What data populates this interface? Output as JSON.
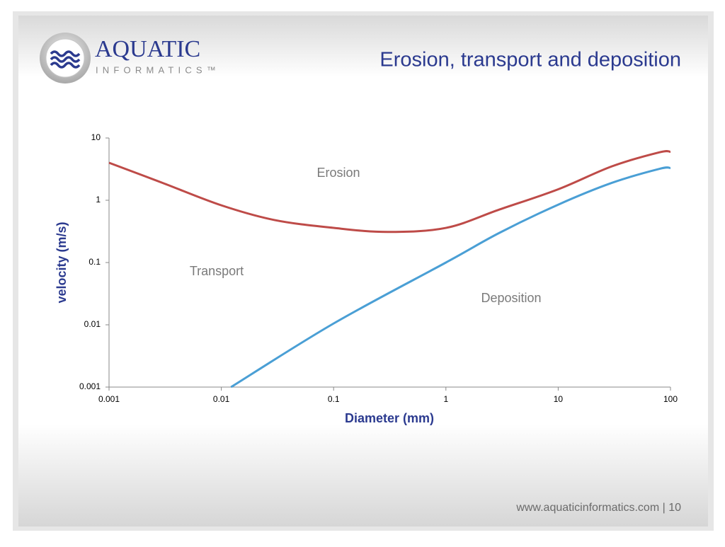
{
  "header": {
    "logo_name": "AQUATIC",
    "logo_sub": "INFORMATICS™",
    "title": "Erosion, transport and deposition"
  },
  "chart_data": {
    "type": "line",
    "x_label": "Diameter (mm)",
    "y_label": "velocity (m/s)",
    "xlog": true,
    "ylog": true,
    "xlim": [
      0.001,
      100
    ],
    "ylim": [
      0.001,
      10
    ],
    "xticks": [
      0.001,
      0.01,
      0.1,
      1,
      10,
      100
    ],
    "yticks": [
      0.001,
      0.01,
      0.1,
      1,
      10
    ],
    "annotations": [
      "Erosion",
      "Transport",
      "Deposition"
    ],
    "series": [
      {
        "color": "#be4b48",
        "x": [
          0.001,
          0.003,
          0.01,
          0.03,
          0.1,
          0.3,
          1,
          3,
          10,
          30,
          80,
          100
        ],
        "values": [
          4,
          1.9,
          0.83,
          0.48,
          0.36,
          0.31,
          0.36,
          0.71,
          1.5,
          3.5,
          5.9,
          6.0
        ]
      },
      {
        "color": "#4a9fd5",
        "x": [
          0.0122,
          0.1,
          1,
          3,
          10,
          30,
          80,
          100
        ],
        "values": [
          0.001,
          0.0105,
          0.1,
          0.3,
          0.85,
          1.9,
          3.2,
          3.3
        ]
      }
    ]
  },
  "footer": "www.aquaticinformatics.com  |  10"
}
